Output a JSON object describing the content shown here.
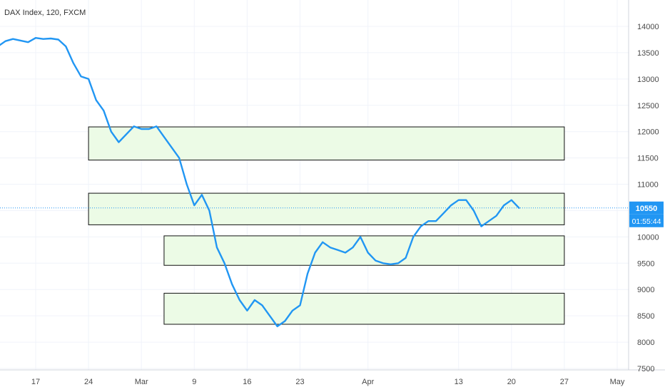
{
  "header": {
    "title": "DAX Index, 120, FXCM"
  },
  "colors": {
    "series": "#2196f3",
    "zone_fill": "#ecfbe6",
    "zone_stroke": "#111111",
    "price_line": "#2196f3",
    "price_badge": "#2196f3",
    "grid": "#f0f3fa",
    "axis_text": "#4a4a4a"
  },
  "chart_data": {
    "type": "line",
    "title": "DAX Index, 120, FXCM",
    "xlabel": "",
    "ylabel": "",
    "grid": true,
    "ylim": [
      7500,
      14300
    ],
    "x_ticks": [
      "17",
      "24",
      "Mar",
      "9",
      "16",
      "23",
      "Apr",
      "13",
      "20",
      "27",
      "May"
    ],
    "y_ticks": [
      7500,
      8000,
      8500,
      9000,
      9500,
      10000,
      10500,
      11000,
      11500,
      12000,
      12500,
      13000,
      13500,
      14000
    ],
    "last_price_label": "10550",
    "countdown_label": "01:55:44",
    "last_price": 10550,
    "zones": [
      {
        "start": "2020-02-24",
        "end": "2020-04-27",
        "low": 11460,
        "high": 12090
      },
      {
        "start": "2020-02-24",
        "end": "2020-04-27",
        "low": 10230,
        "high": 10830
      },
      {
        "start": "2020-03-05",
        "end": "2020-04-27",
        "low": 9460,
        "high": 10020
      },
      {
        "start": "2020-03-05",
        "end": "2020-04-27",
        "low": 8340,
        "high": 8930
      }
    ],
    "series": [
      {
        "dates": [
          "2020-02-12",
          "2020-02-13",
          "2020-02-14",
          "2020-02-15",
          "2020-02-16",
          "2020-02-17",
          "2020-02-18",
          "2020-02-19",
          "2020-02-20",
          "2020-02-21",
          "2020-02-22",
          "2020-02-23",
          "2020-02-24",
          "2020-02-25",
          "2020-02-26",
          "2020-02-27",
          "2020-02-28",
          "2020-02-29",
          "2020-03-01",
          "2020-03-02",
          "2020-03-03",
          "2020-03-04",
          "2020-03-05",
          "2020-03-06",
          "2020-03-07",
          "2020-03-08",
          "2020-03-09",
          "2020-03-10",
          "2020-03-11",
          "2020-03-12",
          "2020-03-13",
          "2020-03-14",
          "2020-03-15",
          "2020-03-16",
          "2020-03-17",
          "2020-03-18",
          "2020-03-19",
          "2020-03-20",
          "2020-03-21",
          "2020-03-22",
          "2020-03-23",
          "2020-03-24",
          "2020-03-25",
          "2020-03-26",
          "2020-03-27",
          "2020-03-28",
          "2020-03-29",
          "2020-03-30",
          "2020-03-31",
          "2020-04-01",
          "2020-04-02",
          "2020-04-03",
          "2020-04-04",
          "2020-04-05",
          "2020-04-06",
          "2020-04-07",
          "2020-04-08",
          "2020-04-09",
          "2020-04-10",
          "2020-04-11",
          "2020-04-12",
          "2020-04-13",
          "2020-04-14",
          "2020-04-15",
          "2020-04-16",
          "2020-04-17",
          "2020-04-18",
          "2020-04-19",
          "2020-04-20",
          "2020-04-21"
        ],
        "values": [
          13620,
          13720,
          13760,
          13730,
          13700,
          13780,
          13760,
          13770,
          13750,
          13620,
          13300,
          13050,
          13000,
          12600,
          12400,
          12000,
          11800,
          11950,
          12100,
          12050,
          12050,
          12100,
          11900,
          11700,
          11500,
          11000,
          10600,
          10800,
          10500,
          9800,
          9500,
          9100,
          8800,
          8600,
          8800,
          8700,
          8500,
          8300,
          8400,
          8600,
          8700,
          9300,
          9700,
          9900,
          9800,
          9750,
          9700,
          9800,
          10000,
          9700,
          9550,
          9500,
          9480,
          9500,
          9600,
          10000,
          10200,
          10300,
          10300,
          10450,
          10600,
          10700,
          10700,
          10500,
          10200,
          10300,
          10400,
          10600,
          10700,
          10550
        ]
      }
    ]
  }
}
